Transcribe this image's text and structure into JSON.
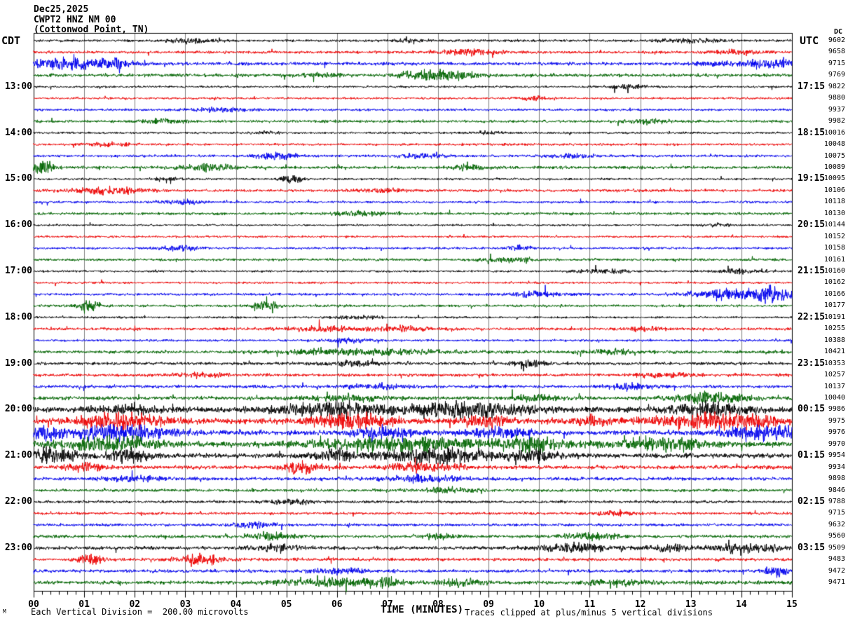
{
  "header": {
    "date": "Dec25,2025",
    "station": "CWPT2 HNZ NM 00",
    "location": "(Cottonwod Point, TN)"
  },
  "axes": {
    "left_tz_label": "CDT",
    "right_tz_label": "UTC",
    "dc_column_label": "DC",
    "x_title": "TIME (MINUTES)",
    "x_ticks": [
      "00",
      "01",
      "02",
      "03",
      "04",
      "05",
      "06",
      "07",
      "08",
      "09",
      "10",
      "11",
      "12",
      "13",
      "14",
      "15"
    ],
    "footer_left": "Each Vertical Division =  200.00 microvolts",
    "footer_right": "Traces clipped at plus/minus 5 vertical divisions",
    "corner_mark": "M"
  },
  "colors": {
    "trace_cycle": [
      "#000000",
      "#ee0000",
      "#0000ee",
      "#006400"
    ],
    "grid": "#808080",
    "frame": "#000000",
    "background": "#ffffff"
  },
  "chart_data": {
    "type": "line",
    "title": "CWPT2 HNZ NM 00 helicorder, Dec25,2025",
    "xlabel": "TIME (MINUTES)",
    "x_range_minutes": [
      0,
      15
    ],
    "minutes_per_row": 15,
    "vertical_division_microvolts": 200.0,
    "clip_divisions": 5,
    "grid": "vertical minute lines",
    "rows": [
      {
        "cdt": "12:00",
        "label_left": "",
        "label_right": "",
        "dc": 9602,
        "color": 0,
        "base": 1.2,
        "bursts": [
          [
            3.1,
            0.3,
            2
          ],
          [
            7.5,
            0.2,
            1.5
          ],
          [
            13.0,
            0.5,
            1.5
          ]
        ]
      },
      {
        "cdt": "12:15",
        "label_left": "",
        "label_right": "",
        "dc": 9658,
        "color": 1,
        "base": 1.3,
        "bursts": [
          [
            8.6,
            0.4,
            2.5
          ],
          [
            13.9,
            0.3,
            2
          ]
        ]
      },
      {
        "cdt": "12:30",
        "label_left": "",
        "label_right": "",
        "dc": 9715,
        "color": 2,
        "base": 1.5,
        "bursts": [
          [
            0.7,
            0.6,
            5
          ],
          [
            1.5,
            0.3,
            3
          ],
          [
            13.4,
            0.25,
            2
          ],
          [
            14.6,
            0.4,
            4
          ]
        ]
      },
      {
        "cdt": "12:45",
        "label_left": "",
        "label_right": "",
        "dc": 9769,
        "color": 3,
        "base": 1.5,
        "bursts": [
          [
            8.0,
            0.5,
            5
          ],
          [
            5.6,
            0.3,
            2
          ]
        ]
      },
      {
        "cdt": "13:00",
        "label_left": "13:00",
        "label_right": "17:15",
        "dc": 9822,
        "color": 0,
        "base": 1.0,
        "bursts": [
          [
            11.8,
            0.3,
            1.5
          ]
        ]
      },
      {
        "cdt": "13:15",
        "label_left": "",
        "label_right": "",
        "dc": 9880,
        "color": 1,
        "base": 1.0,
        "bursts": [
          [
            9.9,
            0.2,
            2
          ]
        ]
      },
      {
        "cdt": "13:30",
        "label_left": "",
        "label_right": "",
        "dc": 9937,
        "color": 2,
        "base": 1.1,
        "bursts": [
          [
            3.7,
            0.4,
            2
          ]
        ]
      },
      {
        "cdt": "13:45",
        "label_left": "",
        "label_right": "",
        "dc": 9982,
        "color": 3,
        "base": 1.3,
        "bursts": [
          [
            2.6,
            0.3,
            2
          ],
          [
            12.1,
            0.3,
            2
          ]
        ]
      },
      {
        "cdt": "14:00",
        "label_left": "14:00",
        "label_right": "18:15",
        "dc": 10016,
        "color": 0,
        "base": 1.0,
        "bursts": [
          [
            4.6,
            0.2,
            1.5
          ],
          [
            9.0,
            0.2,
            1.5
          ]
        ]
      },
      {
        "cdt": "14:15",
        "label_left": "",
        "label_right": "",
        "dc": 10048,
        "color": 1,
        "base": 1.1,
        "bursts": [
          [
            1.5,
            0.3,
            2
          ]
        ]
      },
      {
        "cdt": "14:30",
        "label_left": "",
        "label_right": "",
        "dc": 10075,
        "color": 2,
        "base": 1.2,
        "bursts": [
          [
            4.8,
            0.3,
            3
          ],
          [
            7.6,
            0.3,
            2
          ],
          [
            10.6,
            0.3,
            2
          ]
        ]
      },
      {
        "cdt": "14:45",
        "label_left": "",
        "label_right": "",
        "dc": 10089,
        "color": 3,
        "base": 1.4,
        "bursts": [
          [
            0.2,
            0.15,
            6
          ],
          [
            3.4,
            0.4,
            3
          ],
          [
            8.6,
            0.3,
            2
          ]
        ]
      },
      {
        "cdt": "15:00",
        "label_left": "15:00",
        "label_right": "19:15",
        "dc": 10095,
        "color": 0,
        "base": 1.0,
        "bursts": [
          [
            5.1,
            0.15,
            4
          ],
          [
            2.6,
            0.2,
            1.5
          ]
        ]
      },
      {
        "cdt": "15:15",
        "label_left": "",
        "label_right": "",
        "dc": 10106,
        "color": 1,
        "base": 1.3,
        "bursts": [
          [
            1.5,
            0.5,
            3
          ],
          [
            6.8,
            0.3,
            2
          ]
        ]
      },
      {
        "cdt": "15:30",
        "label_left": "",
        "label_right": "",
        "dc": 10118,
        "color": 2,
        "base": 1.1,
        "bursts": [
          [
            2.9,
            0.3,
            2
          ]
        ]
      },
      {
        "cdt": "15:45",
        "label_left": "",
        "label_right": "",
        "dc": 10130,
        "color": 3,
        "base": 1.2,
        "bursts": [
          [
            6.5,
            0.4,
            2
          ]
        ]
      },
      {
        "cdt": "16:00",
        "label_left": "16:00",
        "label_right": "20:15",
        "dc": 10144,
        "color": 0,
        "base": 0.9,
        "bursts": [
          [
            13.5,
            0.3,
            1.5
          ]
        ]
      },
      {
        "cdt": "16:15",
        "label_left": "",
        "label_right": "",
        "dc": 10152,
        "color": 1,
        "base": 1.0,
        "bursts": []
      },
      {
        "cdt": "16:30",
        "label_left": "",
        "label_right": "",
        "dc": 10158,
        "color": 2,
        "base": 1.1,
        "bursts": [
          [
            2.9,
            0.25,
            2.5
          ],
          [
            9.6,
            0.2,
            2
          ]
        ]
      },
      {
        "cdt": "16:45",
        "label_left": "",
        "label_right": "",
        "dc": 10161,
        "color": 3,
        "base": 1.2,
        "bursts": [
          [
            9.3,
            0.3,
            2
          ]
        ]
      },
      {
        "cdt": "17:00",
        "label_left": "17:00",
        "label_right": "21:15",
        "dc": 10160,
        "color": 0,
        "base": 1.0,
        "bursts": [
          [
            11.2,
            0.4,
            1.8
          ],
          [
            14.0,
            0.4,
            1.8
          ]
        ]
      },
      {
        "cdt": "17:15",
        "label_left": "",
        "label_right": "",
        "dc": 10162,
        "color": 1,
        "base": 1.0,
        "bursts": []
      },
      {
        "cdt": "17:30",
        "label_left": "",
        "label_right": "",
        "dc": 10166,
        "color": 2,
        "base": 1.2,
        "bursts": [
          [
            9.9,
            0.3,
            2.5
          ],
          [
            13.9,
            0.6,
            5
          ],
          [
            14.7,
            0.3,
            4
          ]
        ]
      },
      {
        "cdt": "17:45",
        "label_left": "",
        "label_right": "",
        "dc": 10177,
        "color": 3,
        "base": 1.2,
        "bursts": [
          [
            1.1,
            0.15,
            5
          ],
          [
            4.6,
            0.15,
            5
          ]
        ]
      },
      {
        "cdt": "18:00",
        "label_left": "18:00",
        "label_right": "22:15",
        "dc": 10191,
        "color": 0,
        "base": 1.0,
        "bursts": [
          [
            6.4,
            0.3,
            1.5
          ]
        ]
      },
      {
        "cdt": "18:15",
        "label_left": "",
        "label_right": "",
        "dc": 10255,
        "color": 1,
        "base": 1.3,
        "bursts": [
          [
            5.8,
            0.5,
            2.5
          ],
          [
            7.3,
            0.4,
            2.5
          ],
          [
            12.1,
            0.3,
            2
          ]
        ]
      },
      {
        "cdt": "18:30",
        "label_left": "",
        "label_right": "",
        "dc": 10388,
        "color": 2,
        "base": 1.1,
        "bursts": [
          [
            6.2,
            0.3,
            2
          ]
        ]
      },
      {
        "cdt": "18:45",
        "label_left": "",
        "label_right": "",
        "dc": 10421,
        "color": 3,
        "base": 1.4,
        "bursts": [
          [
            6.5,
            1.2,
            2.5
          ],
          [
            11.5,
            0.4,
            2
          ]
        ]
      },
      {
        "cdt": "19:00",
        "label_left": "19:00",
        "label_right": "23:15",
        "dc": 10353,
        "color": 0,
        "base": 1.4,
        "bursts": [
          [
            9.8,
            0.3,
            2.5
          ],
          [
            6.3,
            0.4,
            2
          ]
        ]
      },
      {
        "cdt": "19:15",
        "label_left": "",
        "label_right": "",
        "dc": 10257,
        "color": 1,
        "base": 1.4,
        "bursts": [
          [
            3.2,
            0.4,
            2
          ],
          [
            12.5,
            0.4,
            2
          ]
        ]
      },
      {
        "cdt": "19:30",
        "label_left": "",
        "label_right": "",
        "dc": 10137,
        "color": 2,
        "base": 1.5,
        "bursts": [
          [
            11.8,
            0.3,
            3
          ],
          [
            6.9,
            0.4,
            2
          ]
        ]
      },
      {
        "cdt": "19:45",
        "label_left": "",
        "label_right": "",
        "dc": 10040,
        "color": 3,
        "base": 1.8,
        "bursts": [
          [
            6.2,
            0.5,
            3
          ],
          [
            13.4,
            0.5,
            5
          ],
          [
            9.9,
            0.3,
            2.5
          ]
        ]
      },
      {
        "cdt": "20:00",
        "label_left": "20:00",
        "label_right": "00:15",
        "dc": 9986,
        "color": 0,
        "base": 2.5,
        "bursts": [
          [
            5.8,
            0.7,
            6
          ],
          [
            8.6,
            0.9,
            6
          ],
          [
            13.3,
            0.6,
            5
          ],
          [
            2.0,
            0.5,
            3
          ]
        ]
      },
      {
        "cdt": "20:15",
        "label_left": "",
        "label_right": "",
        "dc": 9975,
        "color": 1,
        "base": 2.5,
        "bursts": [
          [
            1.7,
            0.6,
            7
          ],
          [
            6.3,
            0.6,
            6
          ],
          [
            8.9,
            0.3,
            5
          ],
          [
            11.1,
            0.3,
            4
          ],
          [
            13.6,
            0.9,
            7
          ]
        ]
      },
      {
        "cdt": "20:30",
        "label_left": "",
        "label_right": "",
        "dc": 9976,
        "color": 2,
        "base": 2.3,
        "bursts": [
          [
            1.6,
            0.8,
            6
          ],
          [
            6.9,
            0.4,
            5
          ],
          [
            9.2,
            0.4,
            4
          ],
          [
            14.5,
            0.5,
            6
          ],
          [
            0.2,
            0.3,
            4
          ]
        ]
      },
      {
        "cdt": "20:45",
        "label_left": "",
        "label_right": "",
        "dc": 9970,
        "color": 3,
        "base": 2.5,
        "bursts": [
          [
            1.6,
            0.7,
            6
          ],
          [
            7.3,
            1.3,
            5
          ],
          [
            9.9,
            0.5,
            5
          ],
          [
            12.4,
            0.7,
            5
          ]
        ]
      },
      {
        "cdt": "21:00",
        "label_left": "21:00",
        "label_right": "01:15",
        "dc": 9954,
        "color": 0,
        "base": 2.2,
        "bursts": [
          [
            0.3,
            0.4,
            6
          ],
          [
            1.9,
            0.3,
            6
          ],
          [
            6.0,
            0.3,
            5
          ],
          [
            8.0,
            0.8,
            6
          ],
          [
            9.9,
            0.3,
            5
          ]
        ]
      },
      {
        "cdt": "21:15",
        "label_left": "",
        "label_right": "",
        "dc": 9934,
        "color": 1,
        "base": 1.8,
        "bursts": [
          [
            5.3,
            0.25,
            6
          ],
          [
            7.8,
            0.5,
            4
          ],
          [
            1.0,
            0.3,
            3
          ]
        ]
      },
      {
        "cdt": "21:30",
        "label_left": "",
        "label_right": "",
        "dc": 9898,
        "color": 2,
        "base": 1.6,
        "bursts": [
          [
            7.7,
            0.5,
            3
          ],
          [
            2.0,
            0.4,
            2
          ]
        ]
      },
      {
        "cdt": "21:45",
        "label_left": "",
        "label_right": "",
        "dc": 9846,
        "color": 3,
        "base": 1.4,
        "bursts": [
          [
            8.2,
            0.4,
            2
          ]
        ]
      },
      {
        "cdt": "22:00",
        "label_left": "22:00",
        "label_right": "02:15",
        "dc": 9788,
        "color": 0,
        "base": 1.3,
        "bursts": [
          [
            5.1,
            0.3,
            2
          ]
        ]
      },
      {
        "cdt": "22:15",
        "label_left": "",
        "label_right": "",
        "dc": 9715,
        "color": 1,
        "base": 1.2,
        "bursts": [
          [
            11.5,
            0.3,
            2
          ]
        ]
      },
      {
        "cdt": "22:30",
        "label_left": "",
        "label_right": "",
        "dc": 9632,
        "color": 2,
        "base": 1.3,
        "bursts": [
          [
            4.4,
            0.3,
            2.5
          ]
        ]
      },
      {
        "cdt": "22:45",
        "label_left": "",
        "label_right": "",
        "dc": 9560,
        "color": 3,
        "base": 1.5,
        "bursts": [
          [
            4.7,
            0.3,
            3
          ],
          [
            11.0,
            0.4,
            3
          ],
          [
            8.0,
            0.3,
            2
          ]
        ]
      },
      {
        "cdt": "23:00",
        "label_left": "23:00",
        "label_right": "03:15",
        "dc": 9509,
        "color": 0,
        "base": 1.7,
        "bursts": [
          [
            4.8,
            0.3,
            3
          ],
          [
            10.7,
            0.5,
            3.5
          ],
          [
            12.6,
            0.3,
            3
          ],
          [
            14.2,
            0.5,
            3.5
          ]
        ]
      },
      {
        "cdt": "23:15",
        "label_left": "",
        "label_right": "",
        "dc": 9483,
        "color": 1,
        "base": 1.5,
        "bursts": [
          [
            1.1,
            0.2,
            4
          ],
          [
            3.3,
            0.3,
            5
          ]
        ]
      },
      {
        "cdt": "23:30",
        "label_left": "",
        "label_right": "",
        "dc": 9472,
        "color": 2,
        "base": 1.5,
        "bursts": [
          [
            14.7,
            0.15,
            5
          ],
          [
            6.0,
            0.4,
            2
          ]
        ]
      },
      {
        "cdt": "23:45",
        "label_left": "",
        "label_right": "",
        "dc": 9471,
        "color": 3,
        "base": 1.7,
        "bursts": [
          [
            5.8,
            0.7,
            4
          ],
          [
            7.0,
            0.2,
            3
          ],
          [
            8.5,
            0.3,
            3
          ],
          [
            11.5,
            0.4,
            3
          ]
        ]
      }
    ]
  }
}
